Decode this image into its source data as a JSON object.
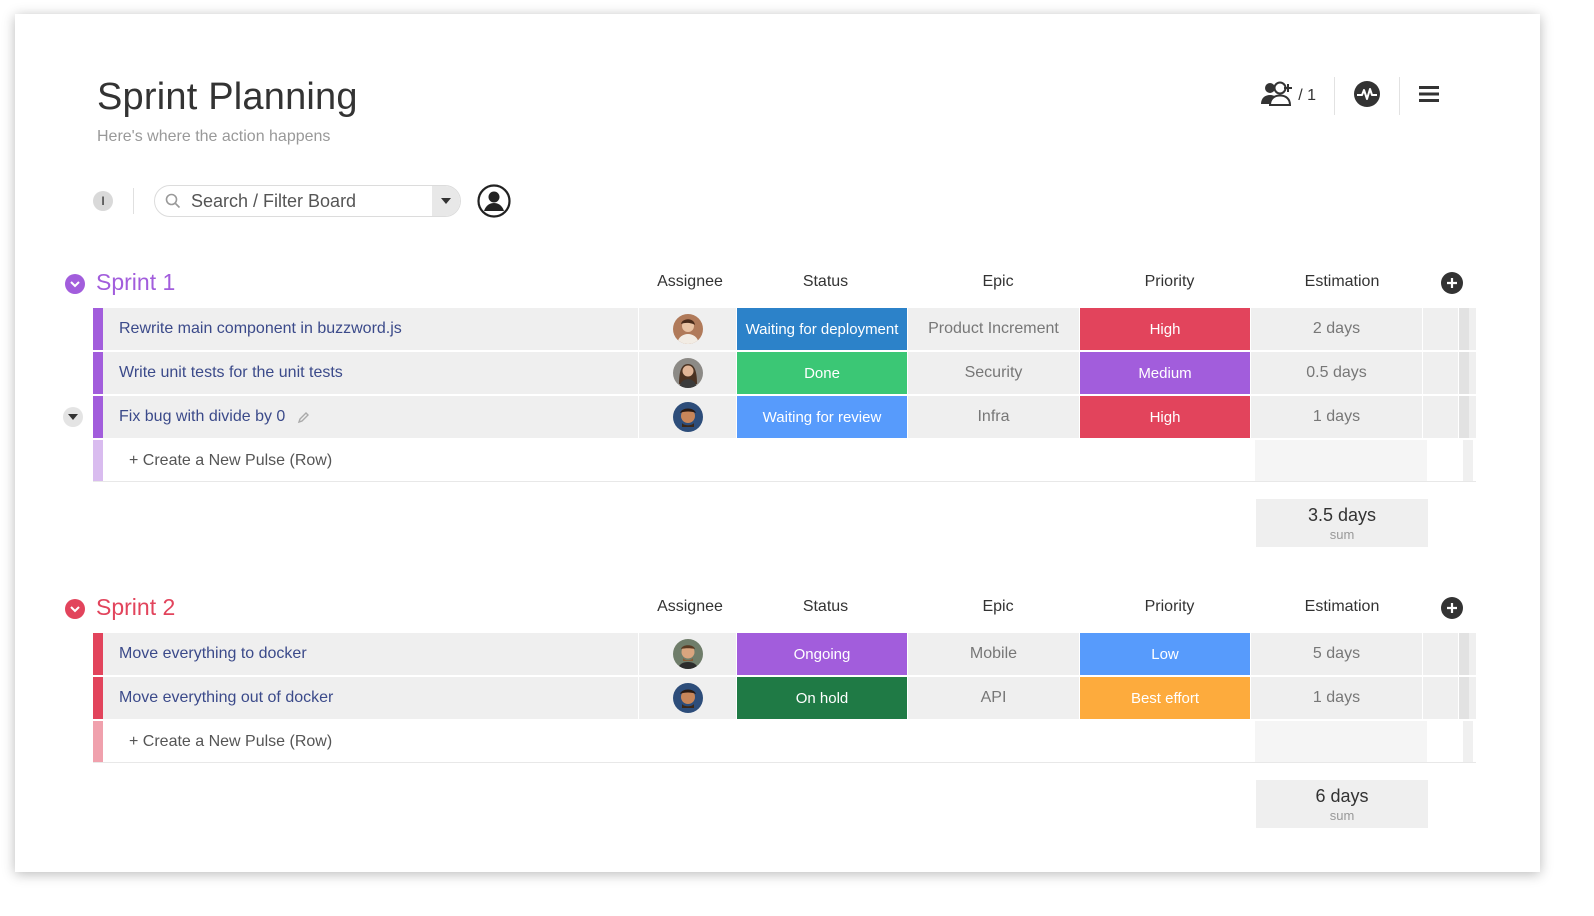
{
  "board": {
    "title": "Sprint Planning",
    "subtitle": "Here's where the action happens",
    "members_count": "/ 1"
  },
  "toolbar": {
    "info_label": "I",
    "search_placeholder": "Search / Filter Board"
  },
  "columns": {
    "assignee": "Assignee",
    "status": "Status",
    "epic": "Epic",
    "priority": "Priority",
    "estimation": "Estimation"
  },
  "new_row_label": "+ Create a New Pulse (Row)",
  "sum_label": "sum",
  "colors": {
    "sprint1": "#a25ddc",
    "sprint1_light": "#d9bcef",
    "sprint2": "#e2445c",
    "sprint2_light": "#f0a1ad",
    "waiting_for_deployment": "#2c82c9",
    "done": "#3bc775",
    "waiting_for_review": "#579bfc",
    "ongoing": "#a25ddc",
    "on_hold": "#1f7a45",
    "high": "#e2445c",
    "medium": "#a25ddc",
    "low": "#579bfc",
    "best_effort": "#fdab3d"
  },
  "groups": [
    {
      "name": "Sprint 1",
      "sum": "3.5 days",
      "rows": [
        {
          "name": "Rewrite main component in buzzword.js",
          "status": "Waiting for deployment",
          "epic": "Product Increment",
          "priority": "High",
          "estimation": "2 days"
        },
        {
          "name": "Write unit tests for the unit tests",
          "status": "Done",
          "epic": "Security",
          "priority": "Medium",
          "estimation": "0.5 days"
        },
        {
          "name": "Fix bug with divide by 0",
          "status": "Waiting for review",
          "epic": "Infra",
          "priority": "High",
          "estimation": "1 days"
        }
      ]
    },
    {
      "name": "Sprint 2",
      "sum": "6 days",
      "rows": [
        {
          "name": "Move everything to docker",
          "status": "Ongoing",
          "epic": "Mobile",
          "priority": "Low",
          "estimation": "5 days"
        },
        {
          "name": "Move everything out of docker",
          "status": "On hold",
          "epic": "API",
          "priority": "Best effort",
          "estimation": "1 days"
        }
      ]
    }
  ]
}
